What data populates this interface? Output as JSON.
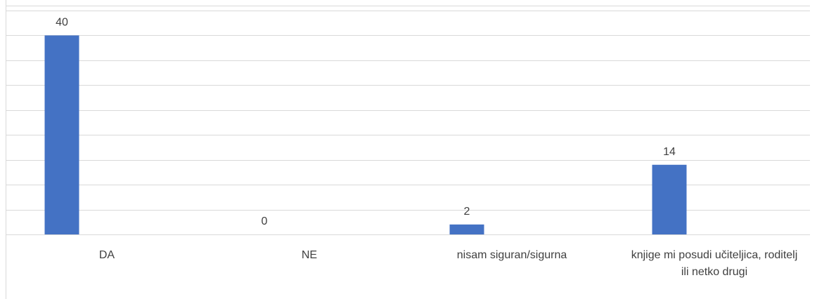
{
  "chart_data": {
    "type": "bar",
    "categories": [
      "DA",
      "NE",
      "nisam siguran/sigurna",
      "knjige mi posudi učiteljica, roditelj ili netko drugi"
    ],
    "values": [
      40,
      0,
      2,
      14
    ],
    "color": "#4472c4",
    "ylim": [
      0,
      45
    ],
    "yticks": [
      0,
      5,
      10,
      15,
      20,
      25,
      30,
      35,
      40,
      45
    ],
    "grid": true
  }
}
